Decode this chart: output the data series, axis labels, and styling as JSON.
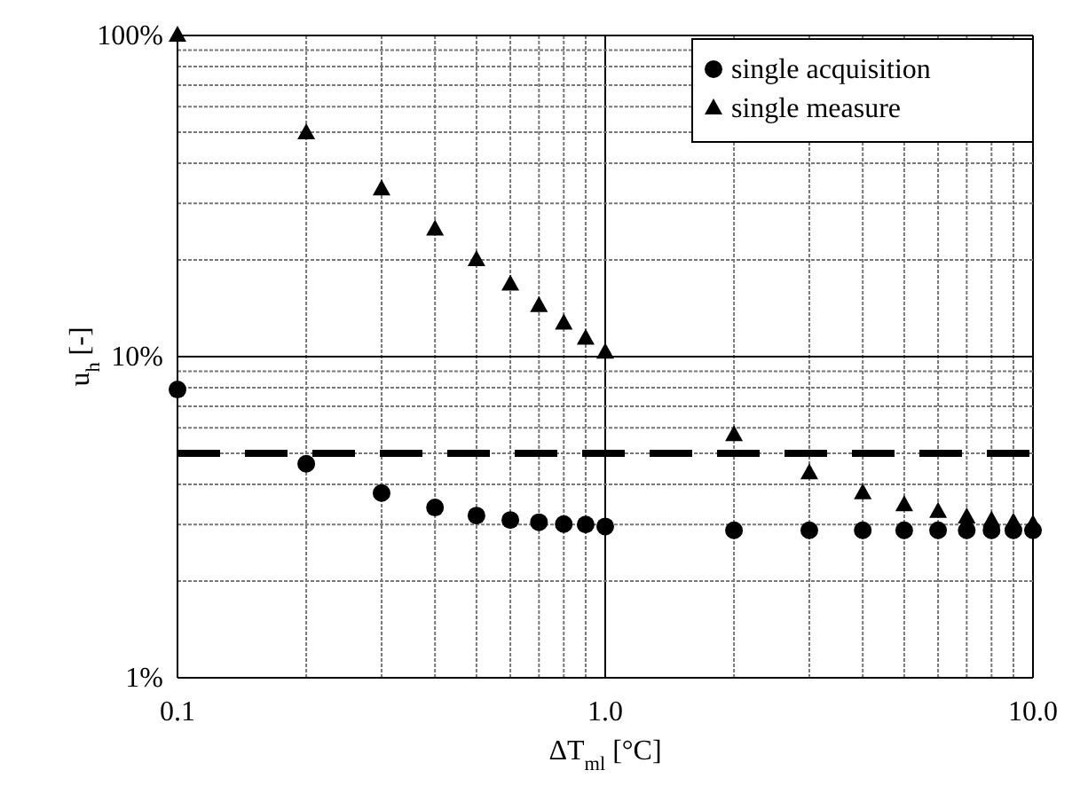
{
  "chart_data": {
    "type": "scatter",
    "xlabel": "ΔT$_{ml}$ [°C]",
    "ylabel": "u$_{h}$ [-]",
    "log": "xy",
    "grid": true,
    "legend": "top right",
    "xlim": [
      0.1,
      10
    ],
    "ylim": [
      1,
      100
    ],
    "xticks": [
      {
        "value": 0.1,
        "label": "0.1"
      },
      {
        "value": 0.2,
        "label": null
      },
      {
        "value": 0.3,
        "label": null
      },
      {
        "value": 0.4,
        "label": null
      },
      {
        "value": 0.5,
        "label": null
      },
      {
        "value": 0.6,
        "label": null
      },
      {
        "value": 0.7,
        "label": null
      },
      {
        "value": 0.8,
        "label": null
      },
      {
        "value": 0.9,
        "label": null
      },
      {
        "value": 1,
        "label": "1.0"
      },
      {
        "value": 2,
        "label": null
      },
      {
        "value": 3,
        "label": null
      },
      {
        "value": 4,
        "label": null
      },
      {
        "value": 5,
        "label": null
      },
      {
        "value": 6,
        "label": null
      },
      {
        "value": 7,
        "label": null
      },
      {
        "value": 8,
        "label": null
      },
      {
        "value": 9,
        "label": null
      },
      {
        "value": 10,
        "label": "10.0"
      }
    ],
    "yticks": [
      {
        "value": 1,
        "label": "1%"
      },
      {
        "value": 2,
        "label": null
      },
      {
        "value": 3,
        "label": null
      },
      {
        "value": 4,
        "label": null
      },
      {
        "value": 5,
        "label": null
      },
      {
        "value": 6,
        "label": null
      },
      {
        "value": 7,
        "label": null
      },
      {
        "value": 8,
        "label": null
      },
      {
        "value": 9,
        "label": null
      },
      {
        "value": 10,
        "label": "10%"
      },
      {
        "value": 20,
        "label": null
      },
      {
        "value": 30,
        "label": null
      },
      {
        "value": 40,
        "label": null
      },
      {
        "value": 50,
        "label": null
      },
      {
        "value": 60,
        "label": null
      },
      {
        "value": 70,
        "label": null
      },
      {
        "value": 80,
        "label": null
      },
      {
        "value": 90,
        "label": null
      },
      {
        "value": 100,
        "label": "100%"
      }
    ],
    "x": [
      0.1,
      0.2,
      0.3,
      0.4,
      0.5,
      0.6,
      0.7,
      0.8,
      0.9,
      1,
      2,
      3,
      4,
      5,
      6,
      7,
      8,
      9,
      10
    ],
    "series": [
      {
        "name": "single acquisition",
        "color": "#000000",
        "marker": "circle",
        "values": [
          7.9,
          4.64,
          3.76,
          3.39,
          3.2,
          3.1,
          3.05,
          3.01,
          3.0,
          2.96,
          2.88,
          2.88,
          2.88,
          2.88,
          2.88,
          2.88,
          2.88,
          2.88,
          2.88
        ]
      },
      {
        "name": "single measure",
        "color": "#000000",
        "marker": "triangle",
        "values": [
          100,
          49.7,
          33.2,
          24.9,
          20,
          16.8,
          14.4,
          12.7,
          11.4,
          10.3,
          5.7,
          4.34,
          3.76,
          3.45,
          3.29,
          3.16,
          3.09,
          3.05,
          3.01
        ]
      }
    ],
    "ref_lines": [
      {
        "axis": "y",
        "value": 5,
        "color": "#000000",
        "line_style": "dashed"
      }
    ]
  }
}
